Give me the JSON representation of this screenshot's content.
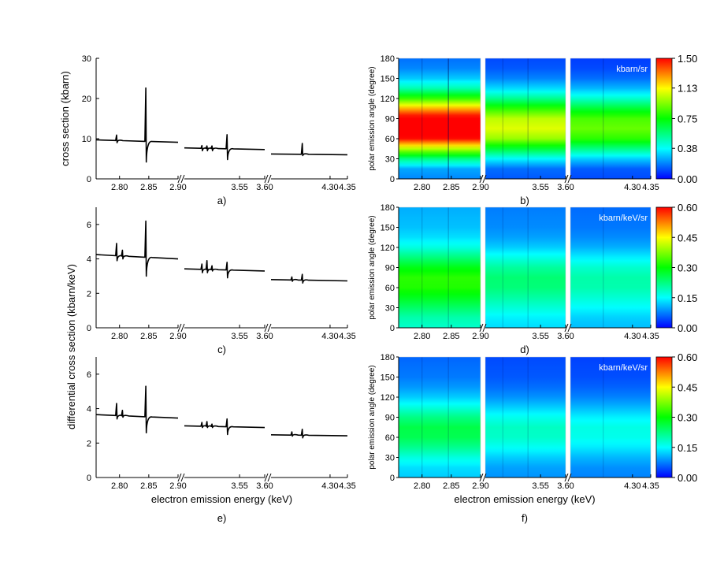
{
  "xlabel": "electron emission energy (keV)",
  "ylabel_top": "cross section (kbarn)",
  "ylabel_shared": "differential cross section (kbarn/keV)",
  "ylabel_right": "polar emission angle (degree)",
  "colors": {
    "colorscale": [
      "#0000ff",
      "#00ffff",
      "#00ff00",
      "#ffff00",
      "#ff0000"
    ],
    "line": "#000000"
  },
  "chart_data": [
    {
      "panel": "a)",
      "type": "line",
      "segments": [
        [
          2.76,
          2.9
        ],
        [
          3.44,
          3.6
        ],
        [
          4.13,
          4.35
        ]
      ],
      "xticks": [
        "2.80",
        "2.85",
        "2.90",
        "3.55",
        "3.60",
        "4.30",
        "4.35"
      ],
      "ylim": [
        0,
        30
      ],
      "yticks": [
        "0",
        "10",
        "20",
        "30"
      ],
      "ylabel": "cross section (kbarn)",
      "xlabel": "",
      "baseline": [
        [
          2.76,
          9.7
        ],
        [
          2.9,
          9.1
        ],
        [
          3.44,
          7.7
        ],
        [
          3.6,
          7.3
        ],
        [
          4.13,
          6.2
        ],
        [
          4.35,
          6.0
        ]
      ],
      "spikes": [
        [
          2.795,
          10.9,
          9.0
        ],
        [
          2.845,
          22.6,
          4.2
        ],
        [
          3.475,
          8.3,
          7.0
        ],
        [
          3.485,
          8.2,
          7.0
        ],
        [
          3.495,
          8.2,
          7.0
        ],
        [
          3.525,
          11.0,
          4.8
        ],
        [
          4.22,
          8.8,
          5.8
        ]
      ]
    },
    {
      "panel": "b)",
      "type": "heatmap",
      "segments": [
        [
          2.76,
          2.9
        ],
        [
          3.44,
          3.6
        ],
        [
          4.13,
          4.35
        ]
      ],
      "xticks": [
        "2.80",
        "2.85",
        "2.90",
        "3.55",
        "3.60",
        "4.30",
        "4.35"
      ],
      "ylim": [
        0,
        180
      ],
      "yticks": [
        "0",
        "30",
        "60",
        "90",
        "120",
        "150",
        "180"
      ],
      "ylabel": "polar emission angle (degree)",
      "unit": "kbarn/sr",
      "colorbar": {
        "min": 0,
        "max": 1.5,
        "ticks": [
          "0.00",
          "0.38",
          "0.75",
          "1.13",
          "1.50"
        ]
      },
      "profile": [
        [
          0,
          0.12
        ],
        [
          15,
          0.15
        ],
        [
          30,
          0.34
        ],
        [
          45,
          0.62
        ],
        [
          60,
          0.9
        ],
        [
          75,
          1.0
        ],
        [
          90,
          0.95
        ],
        [
          105,
          0.75
        ],
        [
          120,
          0.5
        ],
        [
          135,
          0.3
        ],
        [
          150,
          0.18
        ],
        [
          165,
          0.12
        ],
        [
          180,
          0.1
        ]
      ],
      "segment_scale": [
        1.1,
        0.72,
        0.6
      ],
      "features": [
        [
          2.8,
          0.25
        ],
        [
          2.845,
          1.0
        ],
        [
          3.475,
          0.15
        ],
        [
          3.525,
          0.3
        ],
        [
          4.22,
          0.2
        ]
      ]
    },
    {
      "panel": "c)",
      "type": "line",
      "segments": [
        [
          2.76,
          2.9
        ],
        [
          3.44,
          3.6
        ],
        [
          4.13,
          4.35
        ]
      ],
      "xticks": [
        "2.80",
        "2.85",
        "2.90",
        "3.55",
        "3.60",
        "4.30",
        "4.35"
      ],
      "ylim": [
        0,
        7
      ],
      "yticks": [
        "0",
        "2",
        "4",
        "6"
      ],
      "ylabel": "",
      "xlabel": "",
      "baseline": [
        [
          2.76,
          4.25
        ],
        [
          2.9,
          4.0
        ],
        [
          3.44,
          3.42
        ],
        [
          3.6,
          3.3
        ],
        [
          4.13,
          2.8
        ],
        [
          4.35,
          2.72
        ]
      ],
      "spikes": [
        [
          2.795,
          4.9,
          3.9
        ],
        [
          2.805,
          4.5,
          4.0
        ],
        [
          2.845,
          6.2,
          3.0
        ],
        [
          3.475,
          3.7,
          3.2
        ],
        [
          3.485,
          3.9,
          3.2
        ],
        [
          3.495,
          3.6,
          3.3
        ],
        [
          3.525,
          3.8,
          2.9
        ],
        [
          4.19,
          2.95,
          2.7
        ],
        [
          4.22,
          3.1,
          2.6
        ]
      ]
    },
    {
      "panel": "d)",
      "type": "heatmap",
      "segments": [
        [
          2.76,
          2.9
        ],
        [
          3.44,
          3.6
        ],
        [
          4.13,
          4.35
        ]
      ],
      "xticks": [
        "2.80",
        "2.85",
        "2.90",
        "3.55",
        "3.60",
        "4.30",
        "4.35"
      ],
      "ylim": [
        0,
        180
      ],
      "yticks": [
        "0",
        "30",
        "60",
        "90",
        "120",
        "150",
        "180"
      ],
      "ylabel": "polar emission angle (degree)",
      "unit": "kbarn/keV/sr",
      "colorbar": {
        "min": 0,
        "max": 0.6,
        "ticks": [
          "0.00",
          "0.15",
          "0.30",
          "0.45",
          "0.60"
        ]
      },
      "profile": [
        [
          0,
          0.3
        ],
        [
          15,
          0.33
        ],
        [
          30,
          0.4
        ],
        [
          45,
          0.47
        ],
        [
          60,
          0.53
        ],
        [
          75,
          0.54
        ],
        [
          90,
          0.48
        ],
        [
          105,
          0.38
        ],
        [
          120,
          0.28
        ],
        [
          135,
          0.22
        ],
        [
          150,
          0.19
        ],
        [
          165,
          0.18
        ],
        [
          180,
          0.17
        ]
      ],
      "segment_scale": [
        1.0,
        0.72,
        0.62
      ],
      "features": [
        [
          2.8,
          0.1
        ],
        [
          2.845,
          0.2
        ],
        [
          3.475,
          0.05
        ],
        [
          3.525,
          0.1
        ],
        [
          4.22,
          0.05
        ]
      ]
    },
    {
      "panel": "e)",
      "type": "line",
      "segments": [
        [
          2.76,
          2.9
        ],
        [
          3.44,
          3.6
        ],
        [
          4.13,
          4.35
        ]
      ],
      "xticks": [
        "2.80",
        "2.85",
        "2.90",
        "3.55",
        "3.60",
        "4.30",
        "4.35"
      ],
      "ylim": [
        0,
        7
      ],
      "yticks": [
        "0",
        "2",
        "4",
        "6"
      ],
      "ylabel": "",
      "xlabel": "electron emission energy (keV)",
      "baseline": [
        [
          2.76,
          3.65
        ],
        [
          2.9,
          3.45
        ],
        [
          3.44,
          3.0
        ],
        [
          3.6,
          2.9
        ],
        [
          4.13,
          2.48
        ],
        [
          4.35,
          2.42
        ]
      ],
      "spikes": [
        [
          2.795,
          4.3,
          3.4
        ],
        [
          2.805,
          3.9,
          3.5
        ],
        [
          2.845,
          5.3,
          2.6
        ],
        [
          3.475,
          3.2,
          2.9
        ],
        [
          3.485,
          3.25,
          2.9
        ],
        [
          3.495,
          3.1,
          2.9
        ],
        [
          3.525,
          3.4,
          2.5
        ],
        [
          4.19,
          2.65,
          2.4
        ],
        [
          4.22,
          2.8,
          2.3
        ]
      ]
    },
    {
      "panel": "f)",
      "type": "heatmap",
      "segments": [
        [
          2.76,
          2.9
        ],
        [
          3.44,
          3.6
        ],
        [
          4.13,
          4.35
        ]
      ],
      "xticks": [
        "2.80",
        "2.85",
        "2.90",
        "3.55",
        "3.60",
        "4.30",
        "4.35"
      ],
      "ylim": [
        0,
        180
      ],
      "yticks": [
        "0",
        "30",
        "60",
        "90",
        "120",
        "150",
        "180"
      ],
      "ylabel": "polar emission angle (degree)",
      "xlabel": "electron emission energy (keV)",
      "unit": "kbarn/keV/sr",
      "colorbar": {
        "min": 0,
        "max": 0.6,
        "ticks": [
          "0.00",
          "0.15",
          "0.30",
          "0.45",
          "0.60"
        ]
      },
      "profile": [
        [
          0,
          0.2
        ],
        [
          15,
          0.22
        ],
        [
          30,
          0.28
        ],
        [
          45,
          0.36
        ],
        [
          60,
          0.42
        ],
        [
          75,
          0.43
        ],
        [
          90,
          0.37
        ],
        [
          105,
          0.28
        ],
        [
          120,
          0.2
        ],
        [
          135,
          0.15
        ],
        [
          150,
          0.12
        ],
        [
          165,
          0.11
        ],
        [
          180,
          0.1
        ]
      ],
      "segment_scale": [
        1.0,
        0.72,
        0.64
      ],
      "features": [
        [
          2.8,
          0.08
        ],
        [
          2.845,
          0.15
        ],
        [
          3.475,
          0.04
        ],
        [
          3.525,
          0.08
        ],
        [
          4.22,
          0.04
        ]
      ]
    }
  ]
}
